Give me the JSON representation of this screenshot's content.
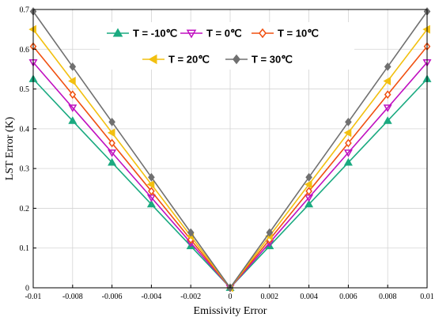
{
  "chart_data": {
    "type": "line",
    "xlabel": "Emissivity Error",
    "ylabel": "LST Error (K)",
    "xlim": [
      -0.01,
      0.01
    ],
    "ylim": [
      0,
      0.7
    ],
    "grid": true,
    "legend_position": "top",
    "x": [
      -0.01,
      -0.008,
      -0.006,
      -0.004,
      -0.002,
      0,
      0.002,
      0.004,
      0.006,
      0.008,
      0.01
    ],
    "x_tick_labels": [
      "-0.01",
      "-0.008",
      "-0.006",
      "-0.004",
      "-0.002",
      "0",
      "0.002",
      "0.004",
      "0.006",
      "0.008",
      "0.01"
    ],
    "y_ticks": [
      0,
      0.1,
      0.2,
      0.3,
      0.4,
      0.5,
      0.6,
      0.7
    ],
    "y_tick_labels": [
      "0",
      "0.1",
      "0.2",
      "0.3",
      "0.4",
      "0.5",
      "0.6",
      "0.7"
    ],
    "series": [
      {
        "name": "T = -10℃",
        "color": "#1aaa80",
        "marker": "triangle-up",
        "values": [
          0.525,
          0.42,
          0.315,
          0.21,
          0.105,
          0,
          0.105,
          0.21,
          0.315,
          0.42,
          0.525
        ]
      },
      {
        "name": "T = 0℃",
        "color": "#c010c0",
        "marker": "triangle-down",
        "values": [
          0.567,
          0.453,
          0.34,
          0.227,
          0.113,
          0,
          0.113,
          0.227,
          0.34,
          0.453,
          0.567
        ]
      },
      {
        "name": "T = 10℃",
        "color": "#f05010",
        "marker": "diamond",
        "values": [
          0.607,
          0.486,
          0.364,
          0.243,
          0.121,
          0,
          0.121,
          0.243,
          0.364,
          0.486,
          0.607
        ]
      },
      {
        "name": "T = 20℃",
        "color": "#f2c010",
        "marker": "triangle-left",
        "values": [
          0.65,
          0.52,
          0.39,
          0.26,
          0.13,
          0,
          0.13,
          0.26,
          0.39,
          0.52,
          0.65
        ]
      },
      {
        "name": "T = 30℃",
        "color": "#707070",
        "marker": "diamond",
        "values": [
          0.695,
          0.556,
          0.417,
          0.278,
          0.139,
          0,
          0.139,
          0.278,
          0.417,
          0.556,
          0.695
        ]
      }
    ]
  }
}
